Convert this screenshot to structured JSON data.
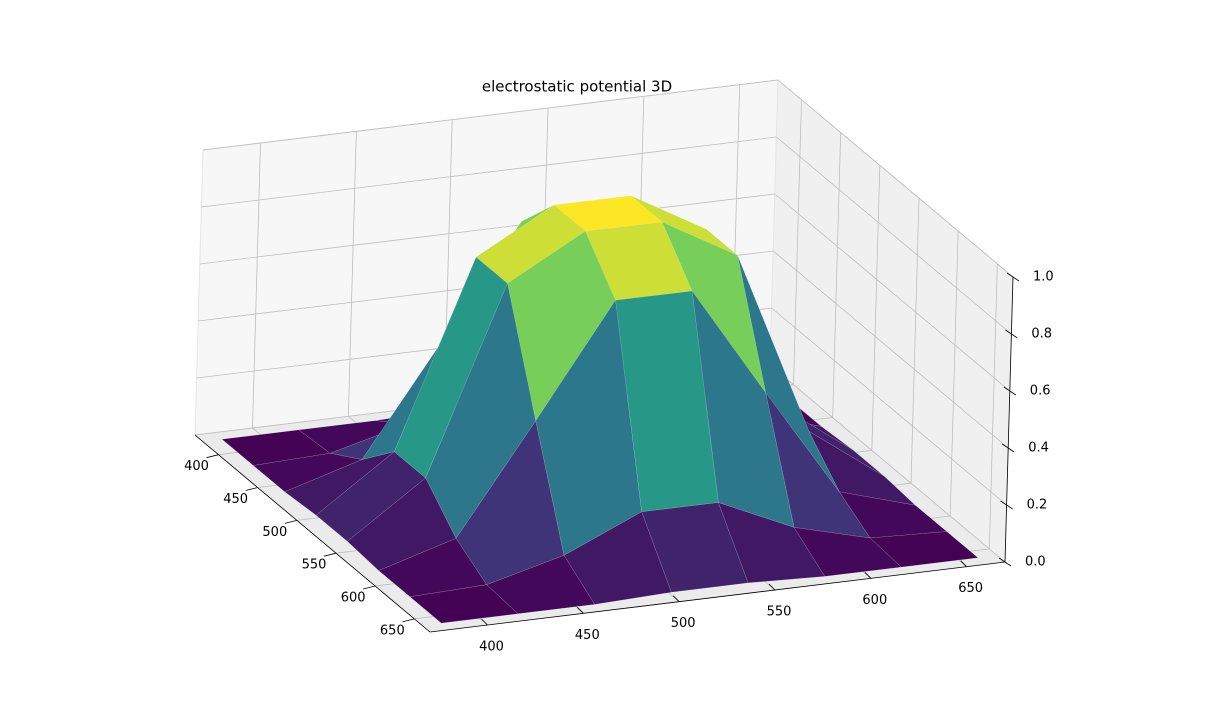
{
  "chart_data": {
    "type": "surface",
    "title": "electrostatic potential 3D",
    "x": [
      380,
      420,
      460,
      500,
      540,
      580,
      620,
      660
    ],
    "y": [
      380,
      420,
      460,
      500,
      540,
      580,
      620,
      660
    ],
    "z": [
      [
        0,
        0,
        0,
        0.01,
        0.01,
        0,
        0,
        0
      ],
      [
        0,
        0.01,
        0.08,
        0.2,
        0.2,
        0.08,
        0.01,
        0
      ],
      [
        0,
        0.08,
        0.46,
        0.85,
        0.85,
        0.46,
        0.08,
        0
      ],
      [
        0.01,
        0.2,
        0.85,
        1,
        1,
        0.85,
        0.2,
        0.01
      ],
      [
        0.01,
        0.2,
        0.85,
        1,
        1,
        0.85,
        0.2,
        0.01
      ],
      [
        0,
        0.08,
        0.46,
        0.85,
        0.85,
        0.46,
        0.08,
        0
      ],
      [
        0,
        0.01,
        0.08,
        0.2,
        0.2,
        0.08,
        0.01,
        0
      ],
      [
        0,
        0,
        0,
        0.01,
        0.01,
        0,
        0,
        0
      ]
    ],
    "xlim": [
      370,
      670
    ],
    "ylim": [
      370,
      670
    ],
    "zlim": [
      0,
      1
    ],
    "xticks": [
      400,
      450,
      500,
      550,
      600,
      650
    ],
    "yticks": [
      400,
      450,
      500,
      550,
      600,
      650
    ],
    "zticks": [
      {
        "value": 0,
        "label": "0.0"
      },
      0.2,
      0.4,
      0.6,
      0.8,
      {
        "value": 1,
        "label": "1.0"
      }
    ],
    "colormap": [
      "#440154",
      "#3b528b",
      "#21918c",
      "#5ec962",
      "#fde725"
    ],
    "grid": true
  }
}
